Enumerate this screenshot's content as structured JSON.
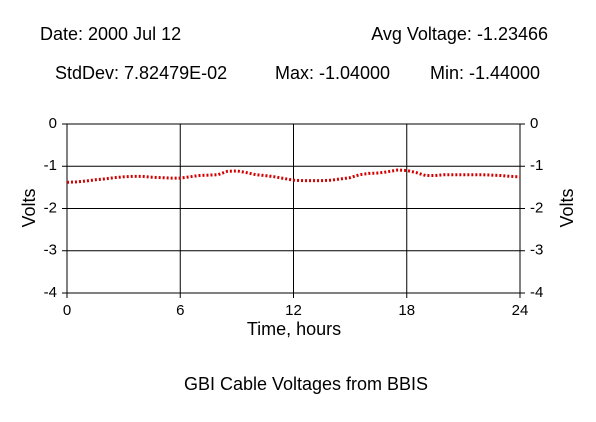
{
  "chart_data": {
    "type": "line",
    "header": {
      "date": "Date: 2000 Jul 12",
      "avg": "Avg Voltage: -1.23466",
      "stddev": "StdDev: 7.82479E-02",
      "max": "Max: -1.04000",
      "min": "Min: -1.44000"
    },
    "title": "GBI Cable Voltages from BBIS",
    "x_label": "Time, hours",
    "y_label": "Volts",
    "y2_label": "Volts",
    "x": [
      0,
      0.5,
      1,
      1.5,
      2,
      2.5,
      3,
      3.5,
      4,
      4.5,
      5,
      5.5,
      6,
      6.5,
      7,
      7.5,
      8,
      8.5,
      9,
      9.5,
      10,
      10.5,
      11,
      11.5,
      12,
      12.5,
      13,
      13.5,
      14,
      14.5,
      15,
      15.5,
      16,
      16.5,
      17,
      17.5,
      18,
      18.5,
      19,
      19.5,
      20,
      20.5,
      21,
      21.5,
      22,
      22.5,
      23,
      23.5,
      24
    ],
    "series": [
      {
        "color": "#d40000",
        "values": [
          -1.38,
          -1.37,
          -1.35,
          -1.32,
          -1.3,
          -1.27,
          -1.25,
          -1.24,
          -1.24,
          -1.26,
          -1.27,
          -1.28,
          -1.28,
          -1.25,
          -1.22,
          -1.21,
          -1.2,
          -1.12,
          -1.11,
          -1.15,
          -1.2,
          -1.22,
          -1.25,
          -1.29,
          -1.33,
          -1.34,
          -1.34,
          -1.34,
          -1.33,
          -1.3,
          -1.27,
          -1.2,
          -1.17,
          -1.16,
          -1.13,
          -1.09,
          -1.1,
          -1.15,
          -1.22,
          -1.22,
          -1.2,
          -1.2,
          -1.2,
          -1.2,
          -1.2,
          -1.21,
          -1.22,
          -1.24,
          -1.25
        ]
      }
    ],
    "xlim": [
      0,
      24
    ],
    "xticks": [
      0,
      6,
      12,
      18,
      24
    ],
    "ylim": [
      -4,
      0
    ],
    "yticks": [
      0,
      -1,
      -2,
      -3,
      -4
    ],
    "y2lim": [
      -4,
      0
    ],
    "y2ticks": [
      0,
      -1,
      -2,
      -3,
      -4
    ],
    "grid": true
  }
}
